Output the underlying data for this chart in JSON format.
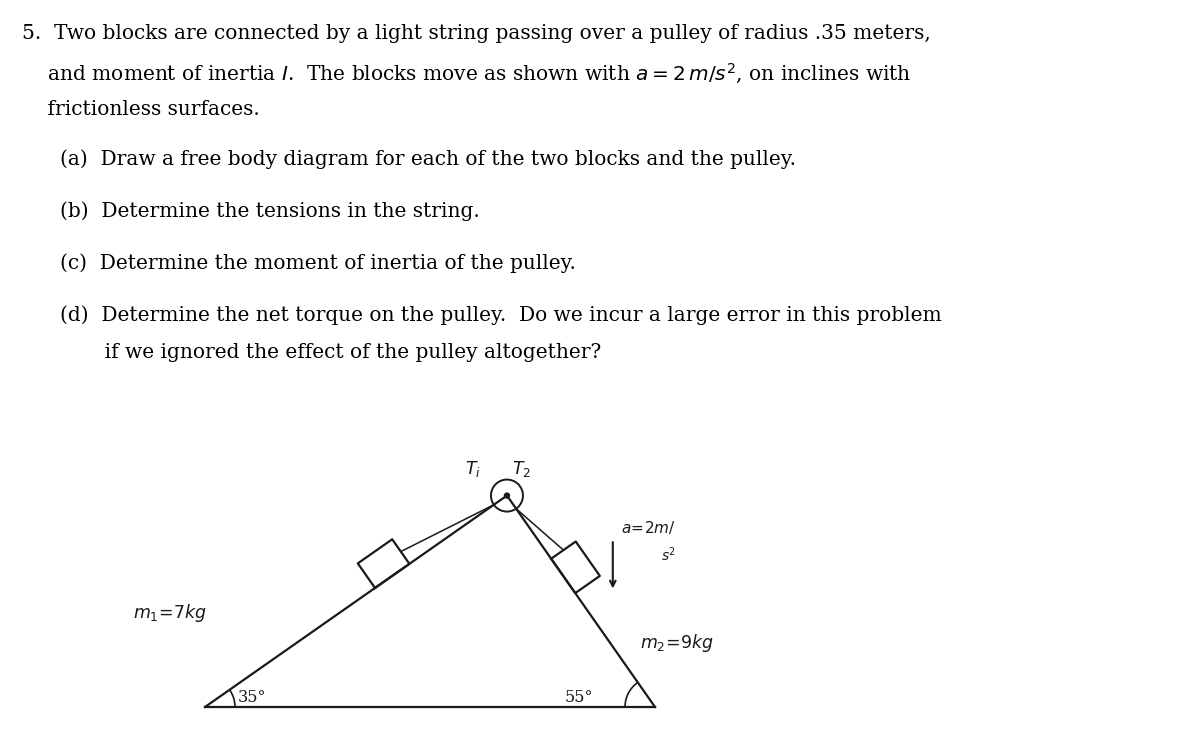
{
  "bg_color": "#ffffff",
  "text_color": "#000000",
  "line1": "5.  Two blocks are connected by a light string passing over a pulley of radius .35 meters,",
  "line2": "    and moment of inertia $I$.  The blocks move as shown with $a = 2\\,m/s^2$, on inclines with",
  "line3": "    frictionless surfaces.",
  "part_a": "(a)  Draw a free body diagram for each of the two blocks and the pulley.",
  "part_b": "(b)  Determine the tensions in the string.",
  "part_c": "(c)  Determine the moment of inertia of the pulley.",
  "part_d1": "(d)  Determine the net torque on the pulley.  Do we incur a large error in this problem",
  "part_d2": "       if we ignored the effect of the pulley altogether?",
  "font_size": 14.5,
  "diagram_font": 13
}
